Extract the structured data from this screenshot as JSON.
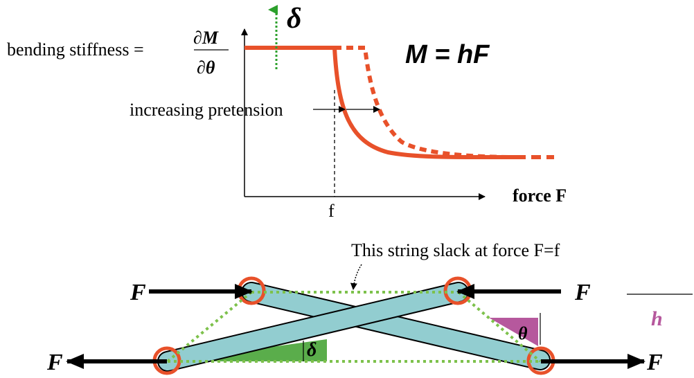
{
  "graph": {
    "ylabel_prefix": "bending stiffness =",
    "ylabel_numerator": "∂M",
    "ylabel_denominator": "∂θ",
    "delta_symbol": "δ",
    "equation": "M = hF",
    "annotation": "increasing pretension",
    "xlabel": "force F",
    "x_tick": "f"
  },
  "mechanism": {
    "slack_note": "This string slack at force F=f",
    "force_symbol": "F",
    "angle_symbol": "θ",
    "delta_symbol": "δ",
    "height_symbol": "h"
  },
  "colors": {
    "curve": "#e8512a",
    "bar": "#92cdd0",
    "string": "#7dc14b",
    "arrow_green": "#2ca02c",
    "delta_fill": "#5aad4b",
    "theta_fill": "#b6589d",
    "h_text": "#b6589d",
    "joint": "#e8512a"
  }
}
